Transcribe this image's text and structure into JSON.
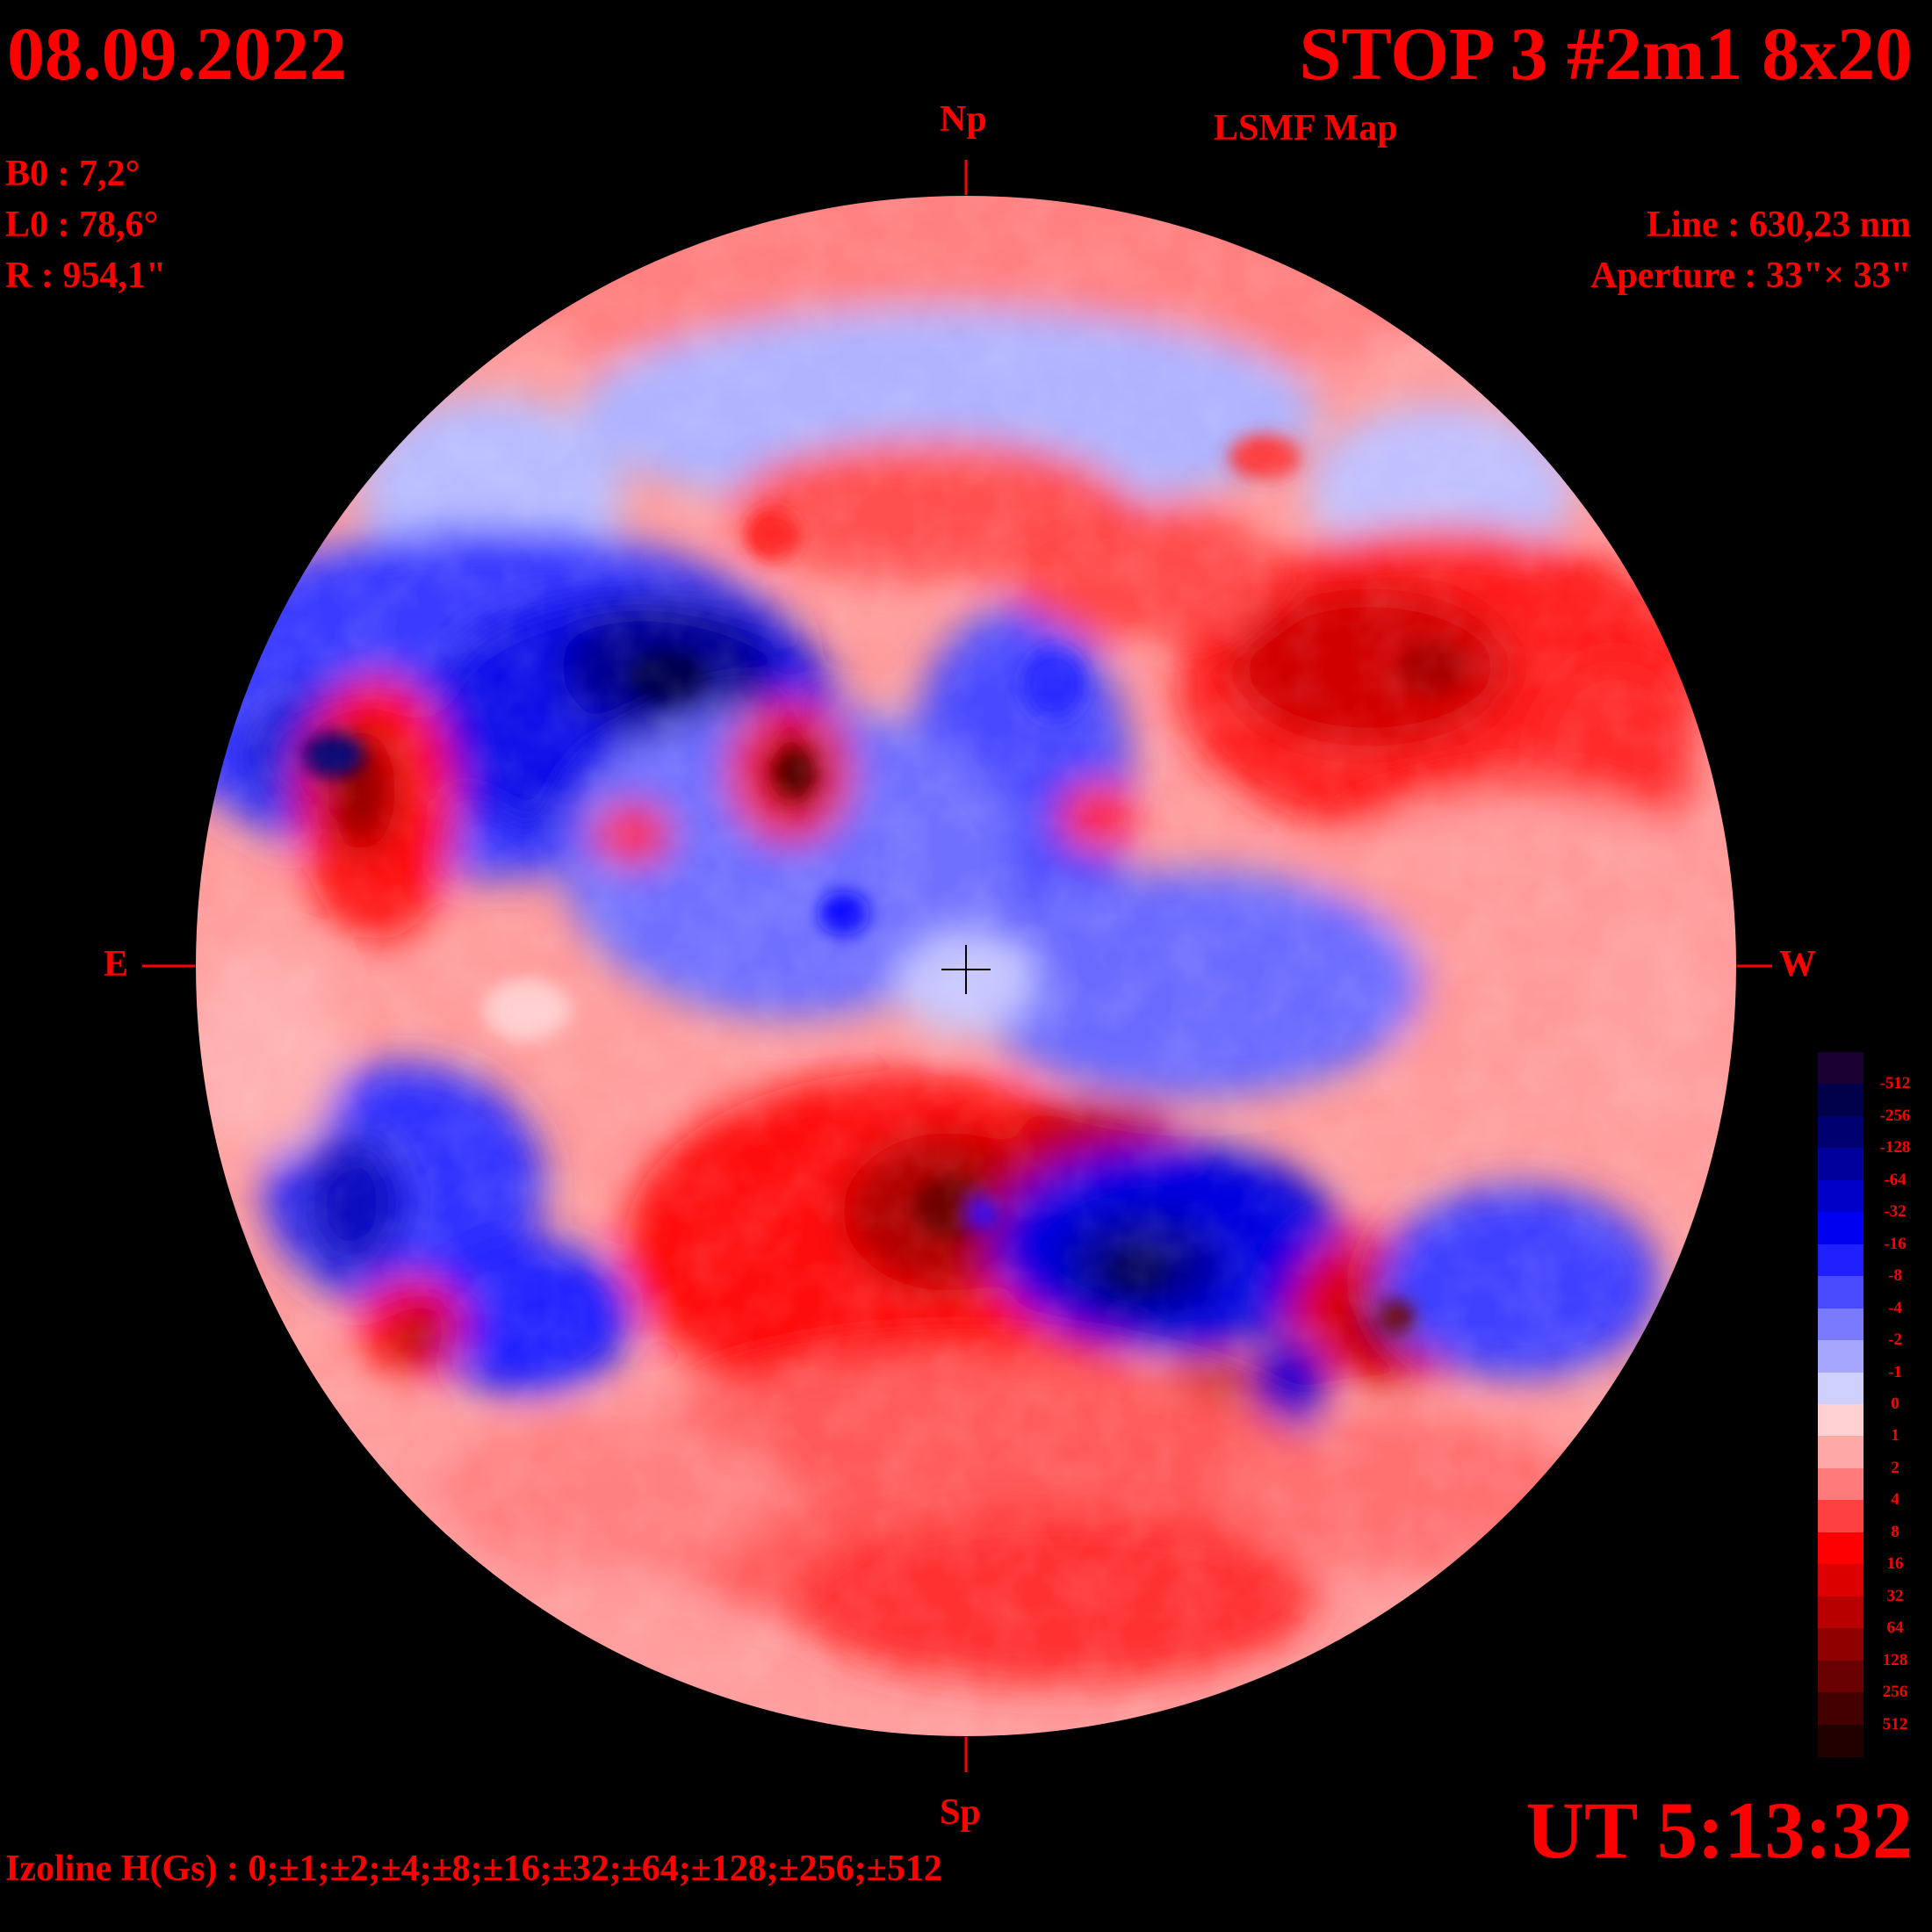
{
  "header": {
    "date": "08.09.2022",
    "title": "STOP 3 #2m1 8x20",
    "subtitle": "LSMF  Map"
  },
  "parameters": {
    "b0": "B0 : 7,2°",
    "l0": "L0 : 78,6°",
    "r": "R  : 954,1\""
  },
  "instrument": {
    "line": "Line :  630,23 nm",
    "aperture": "Aperture : 33\"× 33\""
  },
  "directions": {
    "north": "Np",
    "south": "Sp",
    "east": "E",
    "west": "W"
  },
  "time": "UT 5:13:32",
  "izoline": "Izoline H(Gs) : 0;±1;±2;±4;±8;±16;±32;±64;±128;±256;±512",
  "colorbar": {
    "labels": [
      "-512",
      "-256",
      "-128",
      "-64",
      "-32",
      "-16",
      "-8",
      "-4",
      "-2",
      "-1",
      "0",
      "1",
      "2",
      "4",
      "8",
      "16",
      "32",
      "64",
      "128",
      "256",
      "512"
    ],
    "colors": [
      "#1a0033",
      "#00004a",
      "#000070",
      "#00009a",
      "#0000c8",
      "#0000f0",
      "#2020ff",
      "#4a4aff",
      "#7a7aff",
      "#a6a6ff",
      "#d0d0ff",
      "#ffd0d0",
      "#ffa8a8",
      "#ff7a7a",
      "#ff4040",
      "#ff0000",
      "#dd0000",
      "#b80000",
      "#900000",
      "#680000",
      "#420000",
      "#220000"
    ]
  },
  "legend_colors": {
    "text": "#ff0000",
    "background": "#000000"
  }
}
